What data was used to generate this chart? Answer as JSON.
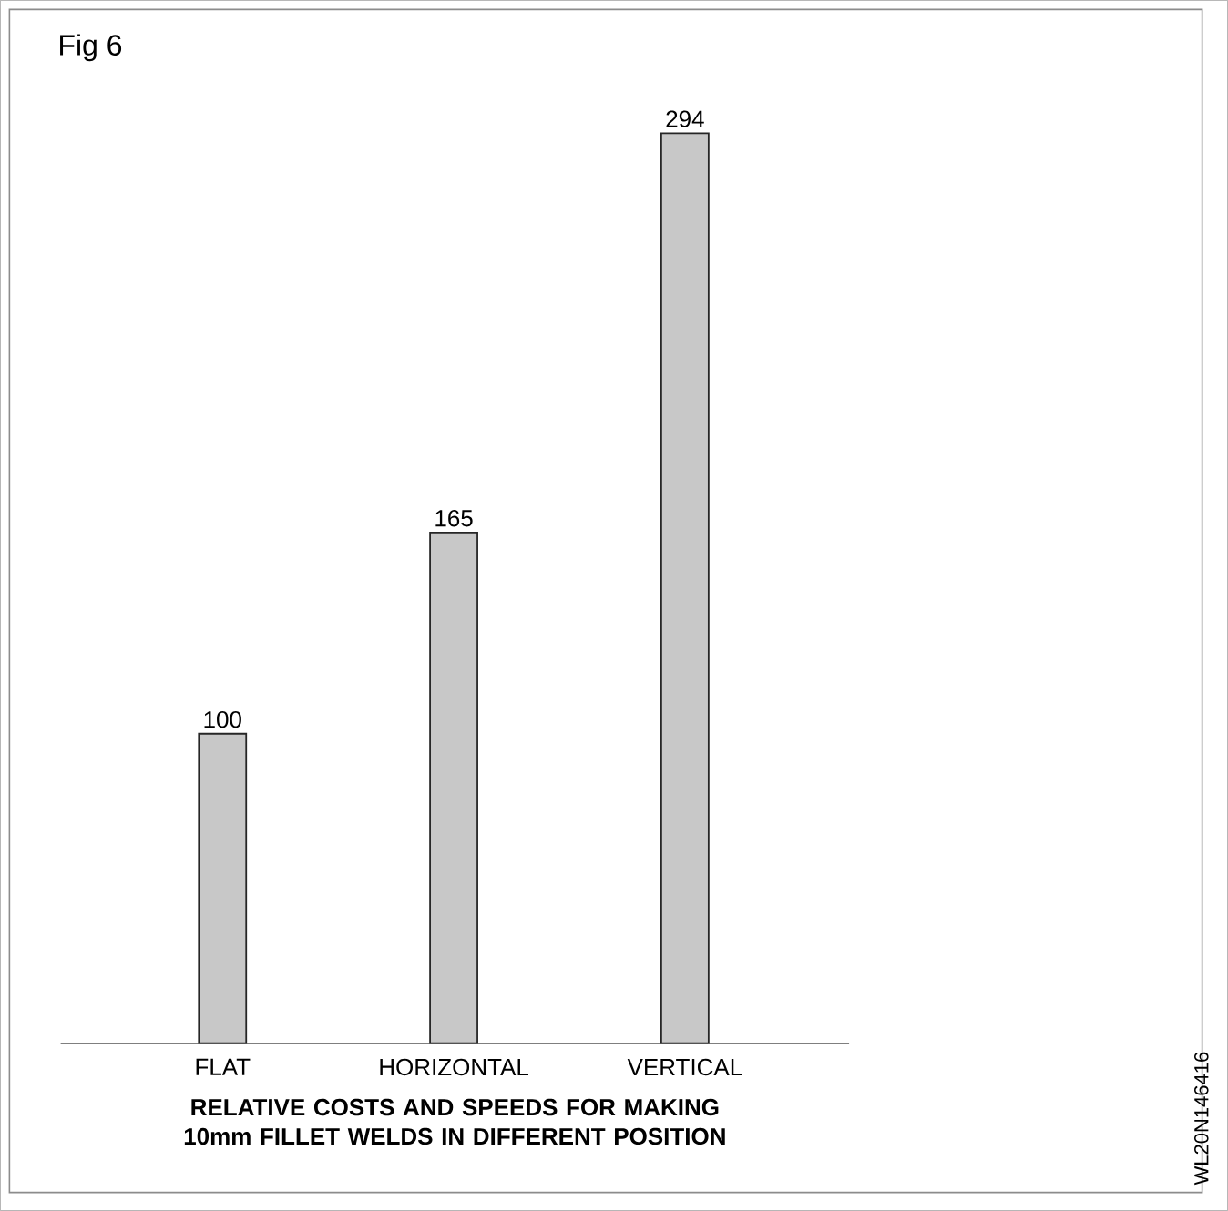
{
  "chart_data": {
    "type": "bar",
    "title": "Fig 6",
    "xlabel": "RELATIVE COSTS AND SPEEDS FOR MAKING 10mm FILLET WELDS IN DIFFERENT POSITION",
    "categories": [
      "FLAT",
      "HORIZONTAL",
      "VERTICAL"
    ],
    "values": [
      100,
      165,
      294
    ],
    "color": "#c8c8c8",
    "data_labels": true,
    "annotations": [
      "WL20N146416"
    ]
  }
}
